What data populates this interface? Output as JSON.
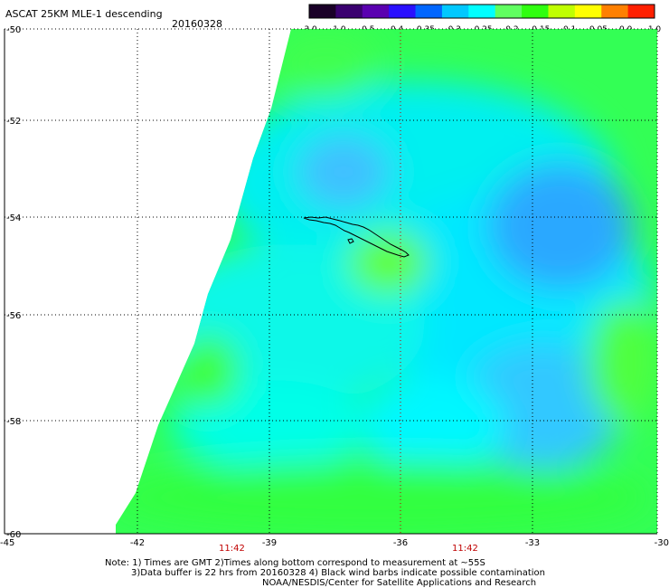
{
  "header": {
    "title": "ASCAT 25KM MLE-1 descending",
    "date": "20160328"
  },
  "colorbar": {
    "ticks": [
      "-3.0",
      "-1.0",
      "-0.5",
      "-0.4",
      "-0.35",
      "-0.3",
      "-0.25",
      "-0.2",
      "-0.15",
      "-0.1",
      "-0.05",
      "0.0",
      "1.0"
    ],
    "colors": [
      "#1a0028",
      "#3a0070",
      "#5a00b0",
      "#2a10ff",
      "#0066ff",
      "#00c8ff",
      "#00ffff",
      "#60ff60",
      "#30ff10",
      "#c0ff00",
      "#ffff00",
      "#ff8000",
      "#ff2000"
    ]
  },
  "map": {
    "lat_labels": [
      "-50",
      "-52",
      "-54",
      "-56",
      "-58",
      "-60"
    ],
    "lon_labels": [
      "-45",
      "-42",
      "-39",
      "-36",
      "-33",
      "-30"
    ],
    "time_labels": [
      "11:42",
      "11:42"
    ]
  },
  "footer": {
    "line1": "Note: 1) Times are GMT 2)Times along bottom correspond to measurement at ~55S",
    "line2": "3)Data buffer is 22 hrs from 20160328 4) Black wind barbs indicate possible contamination",
    "line3": "NOAA/NESDIS/Center for Satellite Applications and Research"
  }
}
